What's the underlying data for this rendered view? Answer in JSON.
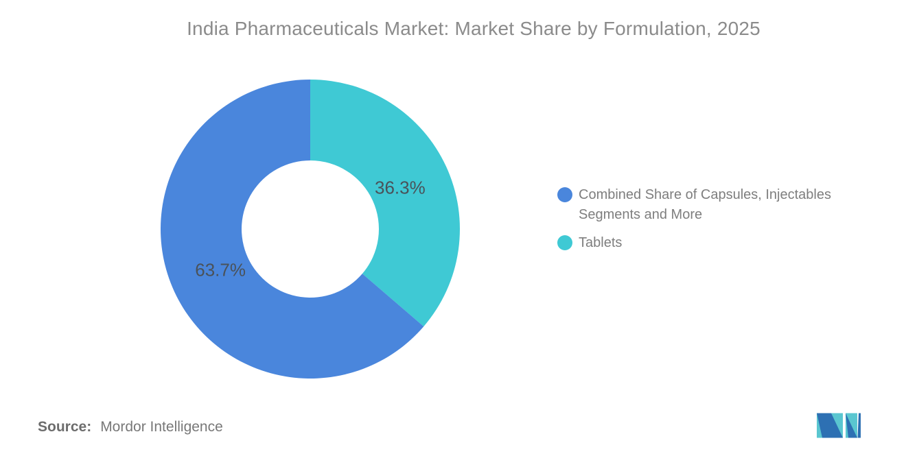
{
  "chart_data": {
    "type": "pie",
    "donut": true,
    "title": "India Pharmaceuticals Market: Market Share by Formulation, 2025",
    "categories": [
      "Combined Share of Capsules, Injectables Segments and More",
      "Tablets"
    ],
    "values": [
      63.7,
      36.3
    ],
    "labels": [
      "63.7%",
      "36.3%"
    ],
    "colors": [
      "#4A86DC",
      "#3FC9D4"
    ],
    "start_angle_deg": 0,
    "direction": "clockwise",
    "draw_sequence": [
      1,
      0
    ],
    "inner_radius_ratio": 0.46,
    "legend_position": "right"
  },
  "legend": {
    "items": [
      {
        "label": "Combined Share of Capsules, Injectables Segments and More",
        "lines": [
          "Combined Share of Capsules, Injectables",
          "Segments and More"
        ],
        "color": "#4A86DC"
      },
      {
        "label": "Tablets",
        "lines": [
          "Tablets"
        ],
        "color": "#3FC9D4"
      }
    ]
  },
  "source": {
    "label": "Source:",
    "value": "Mordor Intelligence"
  },
  "branding": {
    "logo_name": "mordor-intelligence-logo",
    "logo_blue": "#2D70B3",
    "logo_teal": "#5AC6D0"
  }
}
